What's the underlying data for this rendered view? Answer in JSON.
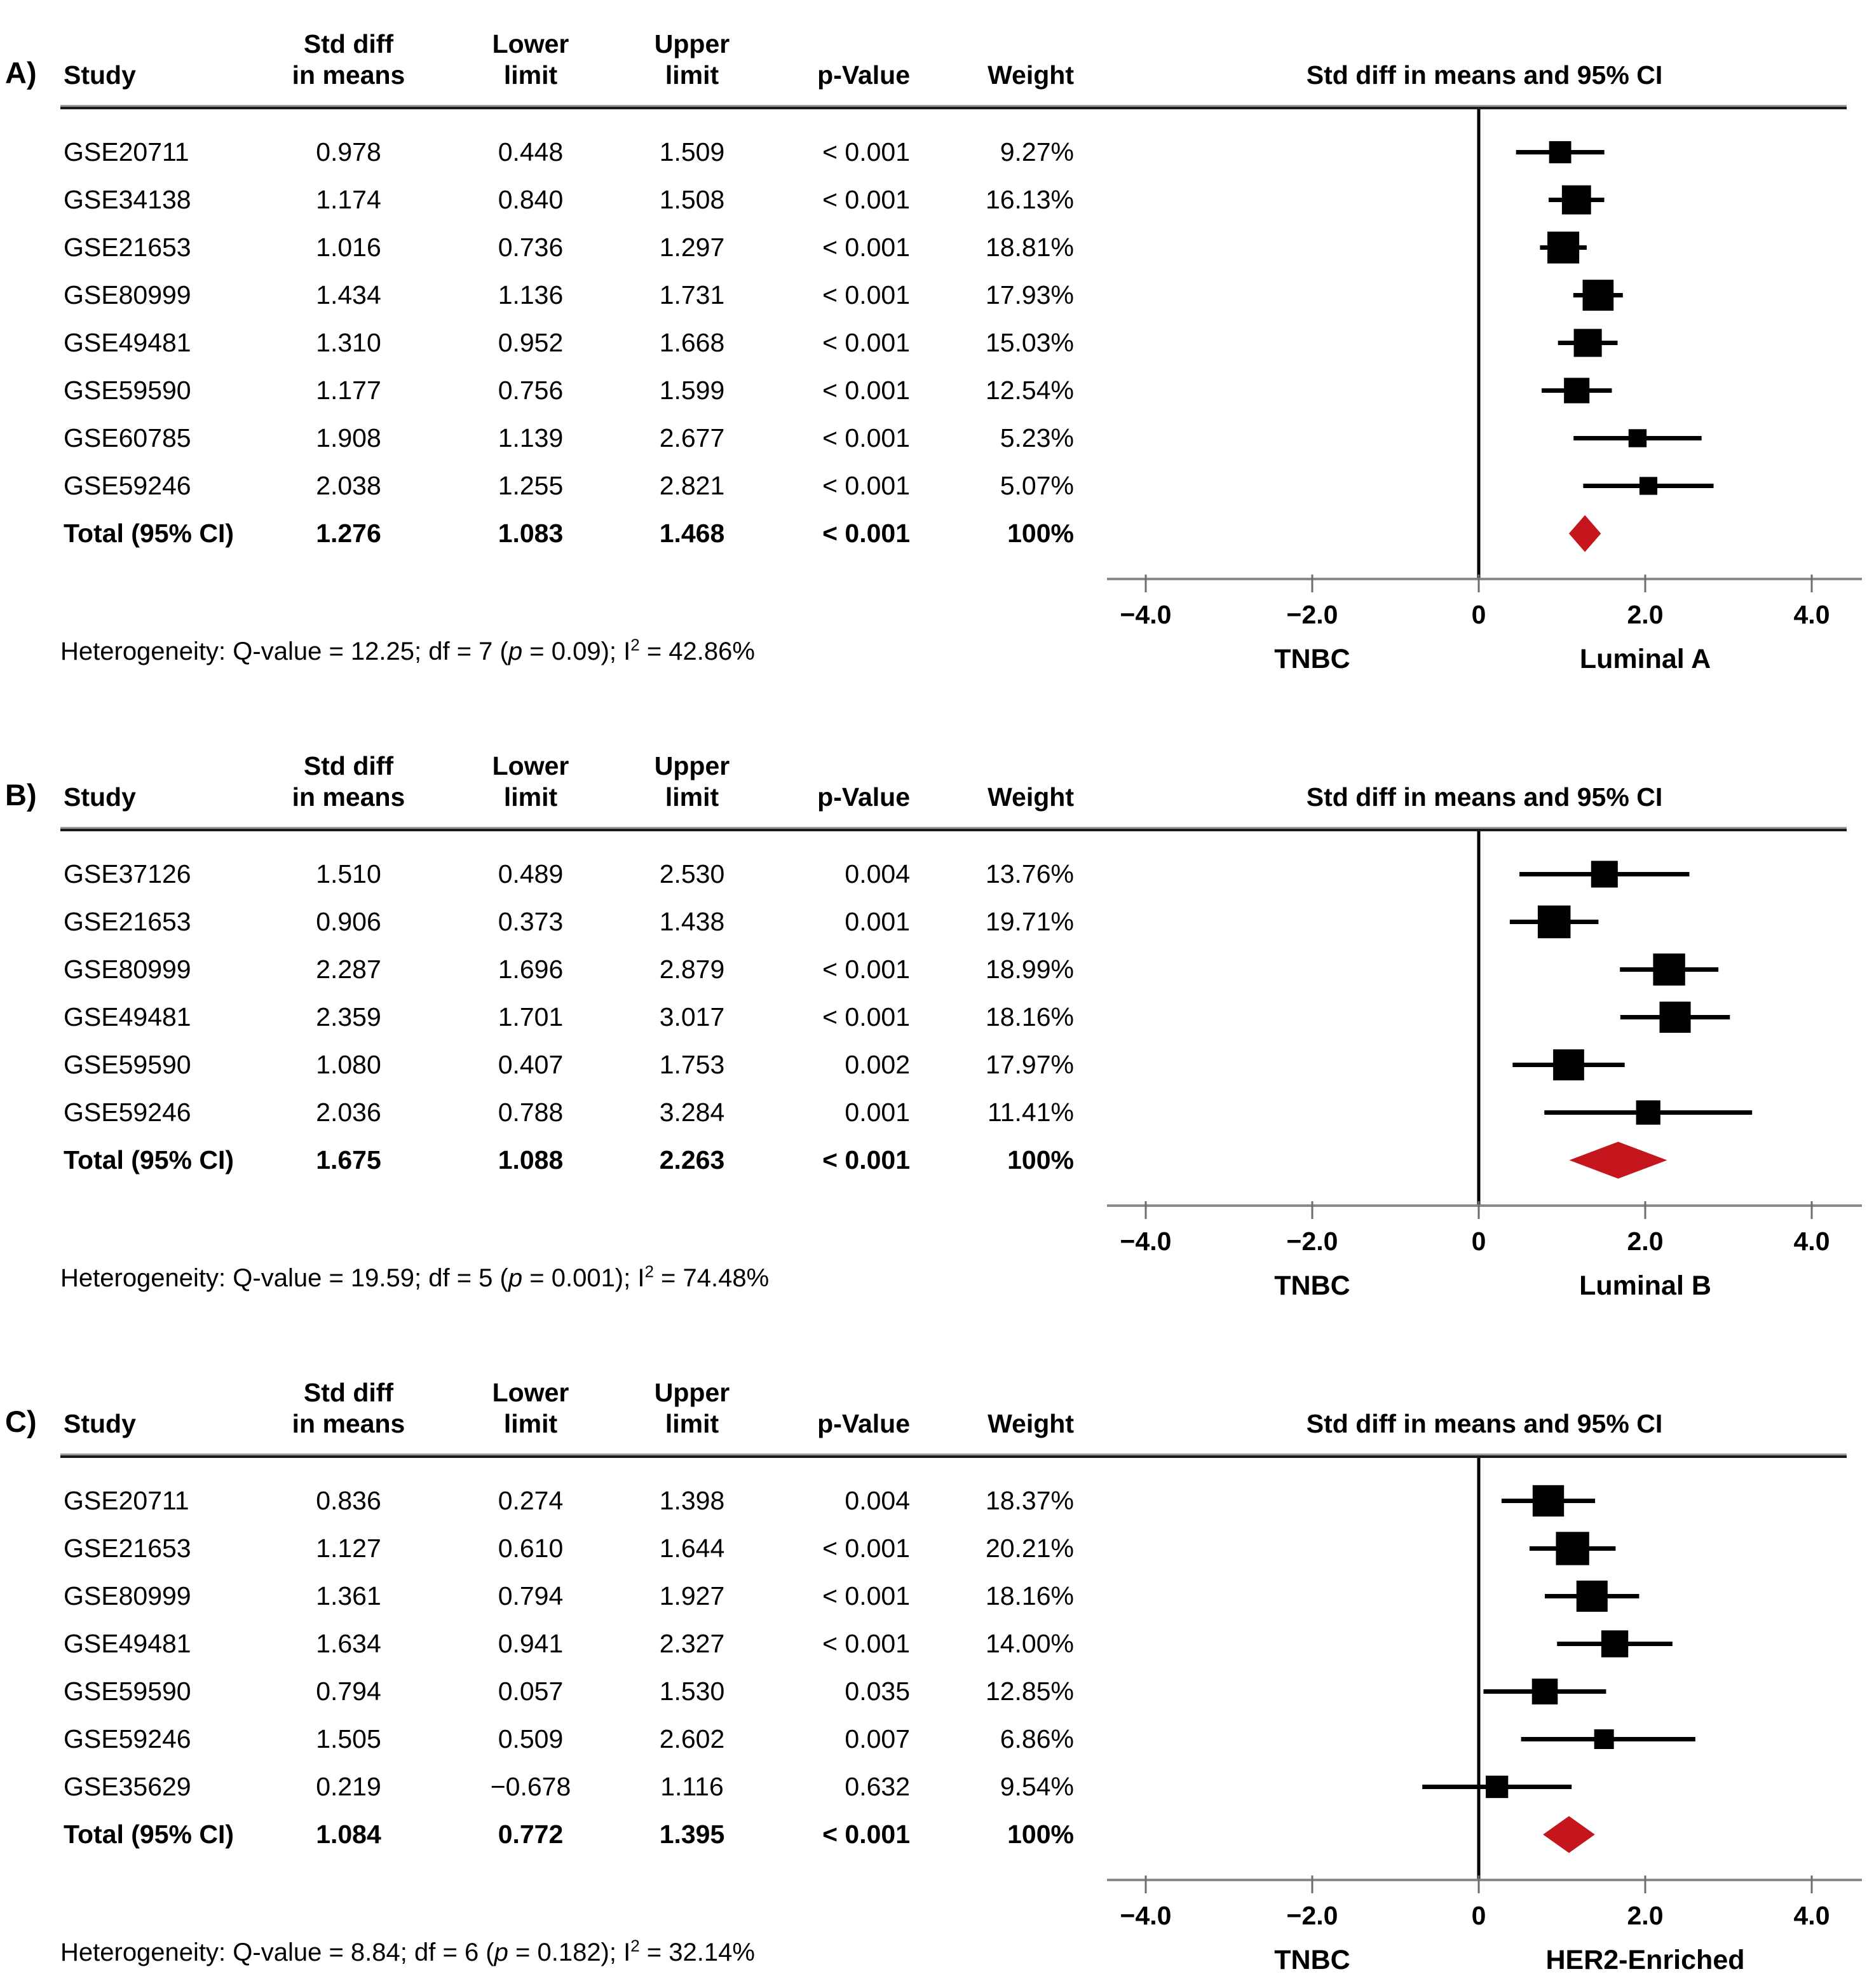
{
  "figure_name": "forest-plots-tnbc-vs-subtypes",
  "colors": {
    "marker": "#000000",
    "summary_diamond": "#c4161c",
    "axis_line": "#8a8a8a",
    "tick": "#6e6e6e",
    "zero_line": "#000000",
    "rule": "#1a1a1a"
  },
  "chart_data": [
    {
      "type": "scatter",
      "variant": "forest-plot",
      "panel": "A)",
      "plot_title": "Std diff in means and 95% CI",
      "columns": [
        [
          "Study"
        ],
        [
          "Std diff",
          "in means"
        ],
        [
          "Lower",
          "limit"
        ],
        [
          "Upper",
          "limit"
        ],
        [
          "p-Value"
        ],
        [
          "Weight"
        ]
      ],
      "rows": [
        {
          "study": "GSE20711",
          "mean": "0.978",
          "lower": "0.448",
          "upper": "1.509",
          "p": "< 0.001",
          "weight": "9.27%",
          "mean_v": 0.978,
          "lower_v": 0.448,
          "upper_v": 1.509,
          "weight_v": 9.27
        },
        {
          "study": "GSE34138",
          "mean": "1.174",
          "lower": "0.840",
          "upper": "1.508",
          "p": "< 0.001",
          "weight": "16.13%",
          "mean_v": 1.174,
          "lower_v": 0.84,
          "upper_v": 1.508,
          "weight_v": 16.13
        },
        {
          "study": "GSE21653",
          "mean": "1.016",
          "lower": "0.736",
          "upper": "1.297",
          "p": "< 0.001",
          "weight": "18.81%",
          "mean_v": 1.016,
          "lower_v": 0.736,
          "upper_v": 1.297,
          "weight_v": 18.81
        },
        {
          "study": "GSE80999",
          "mean": "1.434",
          "lower": "1.136",
          "upper": "1.731",
          "p": "< 0.001",
          "weight": "17.93%",
          "mean_v": 1.434,
          "lower_v": 1.136,
          "upper_v": 1.731,
          "weight_v": 17.93
        },
        {
          "study": "GSE49481",
          "mean": "1.310",
          "lower": "0.952",
          "upper": "1.668",
          "p": "< 0.001",
          "weight": "15.03%",
          "mean_v": 1.31,
          "lower_v": 0.952,
          "upper_v": 1.668,
          "weight_v": 15.03
        },
        {
          "study": "GSE59590",
          "mean": "1.177",
          "lower": "0.756",
          "upper": "1.599",
          "p": "< 0.001",
          "weight": "12.54%",
          "mean_v": 1.177,
          "lower_v": 0.756,
          "upper_v": 1.599,
          "weight_v": 12.54
        },
        {
          "study": "GSE60785",
          "mean": "1.908",
          "lower": "1.139",
          "upper": "2.677",
          "p": "< 0.001",
          "weight": "5.23%",
          "mean_v": 1.908,
          "lower_v": 1.139,
          "upper_v": 2.677,
          "weight_v": 5.23
        },
        {
          "study": "GSE59246",
          "mean": "2.038",
          "lower": "1.255",
          "upper": "2.821",
          "p": "< 0.001",
          "weight": "5.07%",
          "mean_v": 2.038,
          "lower_v": 1.255,
          "upper_v": 2.821,
          "weight_v": 5.07
        }
      ],
      "total": {
        "study": "Total (95% CI)",
        "mean": "1.276",
        "lower": "1.083",
        "upper": "1.468",
        "p": "< 0.001",
        "weight": "100%",
        "mean_v": 1.276,
        "lower_v": 1.083,
        "upper_v": 1.468
      },
      "axis": {
        "xlim": [
          -4.5,
          4.6
        ],
        "ticks": [
          {
            "v": -4,
            "label": "−4.0"
          },
          {
            "v": -2,
            "label": "−2.0"
          },
          {
            "v": 0,
            "label": "0"
          },
          {
            "v": 2,
            "label": "2.0"
          },
          {
            "v": 4,
            "label": "4.0"
          }
        ]
      },
      "xlabel_left": "TNBC",
      "xlabel_right": "Luminal A",
      "heterogeneity": [
        {
          "t": "Heterogeneity: Q-value = 12.25; df = 7 ("
        },
        {
          "t": "p",
          "style": "italic"
        },
        {
          "t": " = 0.09); I"
        },
        {
          "t": "2",
          "style": "sup"
        },
        {
          "t": " = 42.86%"
        }
      ]
    },
    {
      "type": "scatter",
      "variant": "forest-plot",
      "panel": "B)",
      "plot_title": "Std diff in means and 95% CI",
      "columns": [
        [
          "Study"
        ],
        [
          "Std diff",
          "in means"
        ],
        [
          "Lower",
          "limit"
        ],
        [
          "Upper",
          "limit"
        ],
        [
          "p-Value"
        ],
        [
          "Weight"
        ]
      ],
      "rows": [
        {
          "study": "GSE37126",
          "mean": "1.510",
          "lower": "0.489",
          "upper": "2.530",
          "p": "0.004",
          "weight": "13.76%",
          "mean_v": 1.51,
          "lower_v": 0.489,
          "upper_v": 2.53,
          "weight_v": 13.76
        },
        {
          "study": "GSE21653",
          "mean": "0.906",
          "lower": "0.373",
          "upper": "1.438",
          "p": "0.001",
          "weight": "19.71%",
          "mean_v": 0.906,
          "lower_v": 0.373,
          "upper_v": 1.438,
          "weight_v": 19.71
        },
        {
          "study": "GSE80999",
          "mean": "2.287",
          "lower": "1.696",
          "upper": "2.879",
          "p": "< 0.001",
          "weight": "18.99%",
          "mean_v": 2.287,
          "lower_v": 1.696,
          "upper_v": 2.879,
          "weight_v": 18.99
        },
        {
          "study": "GSE49481",
          "mean": "2.359",
          "lower": "1.701",
          "upper": "3.017",
          "p": "< 0.001",
          "weight": "18.16%",
          "mean_v": 2.359,
          "lower_v": 1.701,
          "upper_v": 3.017,
          "weight_v": 18.16
        },
        {
          "study": "GSE59590",
          "mean": "1.080",
          "lower": "0.407",
          "upper": "1.753",
          "p": "0.002",
          "weight": "17.97%",
          "mean_v": 1.08,
          "lower_v": 0.407,
          "upper_v": 1.753,
          "weight_v": 17.97
        },
        {
          "study": "GSE59246",
          "mean": "2.036",
          "lower": "0.788",
          "upper": "3.284",
          "p": "0.001",
          "weight": "11.41%",
          "mean_v": 2.036,
          "lower_v": 0.788,
          "upper_v": 3.284,
          "weight_v": 11.41
        }
      ],
      "total": {
        "study": "Total (95% CI)",
        "mean": "1.675",
        "lower": "1.088",
        "upper": "2.263",
        "p": "< 0.001",
        "weight": "100%",
        "mean_v": 1.675,
        "lower_v": 1.088,
        "upper_v": 2.263
      },
      "axis": {
        "xlim": [
          -4.5,
          4.6
        ],
        "ticks": [
          {
            "v": -4,
            "label": "−4.0"
          },
          {
            "v": -2,
            "label": "−2.0"
          },
          {
            "v": 0,
            "label": "0"
          },
          {
            "v": 2,
            "label": "2.0"
          },
          {
            "v": 4,
            "label": "4.0"
          }
        ]
      },
      "xlabel_left": "TNBC",
      "xlabel_right": "Luminal B",
      "heterogeneity": [
        {
          "t": "Heterogeneity: Q-value = 19.59; df = 5 ("
        },
        {
          "t": "p",
          "style": "italic"
        },
        {
          "t": " = 0.001); I"
        },
        {
          "t": "2",
          "style": "sup"
        },
        {
          "t": " = 74.48%"
        }
      ]
    },
    {
      "type": "scatter",
      "variant": "forest-plot",
      "panel": "C)",
      "plot_title": "Std diff in means and 95% CI",
      "columns": [
        [
          "Study"
        ],
        [
          "Std diff",
          "in means"
        ],
        [
          "Lower",
          "limit"
        ],
        [
          "Upper",
          "limit"
        ],
        [
          "p-Value"
        ],
        [
          "Weight"
        ]
      ],
      "rows": [
        {
          "study": "GSE20711",
          "mean": "0.836",
          "lower": "0.274",
          "upper": "1.398",
          "p": "0.004",
          "weight": "18.37%",
          "mean_v": 0.836,
          "lower_v": 0.274,
          "upper_v": 1.398,
          "weight_v": 18.37
        },
        {
          "study": "GSE21653",
          "mean": "1.127",
          "lower": "0.610",
          "upper": "1.644",
          "p": "< 0.001",
          "weight": "20.21%",
          "mean_v": 1.127,
          "lower_v": 0.61,
          "upper_v": 1.644,
          "weight_v": 20.21
        },
        {
          "study": "GSE80999",
          "mean": "1.361",
          "lower": "0.794",
          "upper": "1.927",
          "p": "< 0.001",
          "weight": "18.16%",
          "mean_v": 1.361,
          "lower_v": 0.794,
          "upper_v": 1.927,
          "weight_v": 18.16
        },
        {
          "study": "GSE49481",
          "mean": "1.634",
          "lower": "0.941",
          "upper": "2.327",
          "p": "< 0.001",
          "weight": "14.00%",
          "mean_v": 1.634,
          "lower_v": 0.941,
          "upper_v": 2.327,
          "weight_v": 14.0
        },
        {
          "study": "GSE59590",
          "mean": "0.794",
          "lower": "0.057",
          "upper": "1.530",
          "p": "0.035",
          "weight": "12.85%",
          "mean_v": 0.794,
          "lower_v": 0.057,
          "upper_v": 1.53,
          "weight_v": 12.85
        },
        {
          "study": "GSE59246",
          "mean": "1.505",
          "lower": "0.509",
          "upper": "2.602",
          "p": "0.007",
          "weight": "6.86%",
          "mean_v": 1.505,
          "lower_v": 0.509,
          "upper_v": 2.602,
          "weight_v": 6.86
        },
        {
          "study": "GSE35629",
          "mean": "0.219",
          "lower": "−0.678",
          "upper": "1.116",
          "p": "0.632",
          "weight": "9.54%",
          "mean_v": 0.219,
          "lower_v": -0.678,
          "upper_v": 1.116,
          "weight_v": 9.54
        }
      ],
      "total": {
        "study": "Total (95% CI)",
        "mean": "1.084",
        "lower": "0.772",
        "upper": "1.395",
        "p": "< 0.001",
        "weight": "100%",
        "mean_v": 1.084,
        "lower_v": 0.772,
        "upper_v": 1.395
      },
      "axis": {
        "xlim": [
          -4.5,
          4.6
        ],
        "ticks": [
          {
            "v": -4,
            "label": "−4.0"
          },
          {
            "v": -2,
            "label": "−2.0"
          },
          {
            "v": 0,
            "label": "0"
          },
          {
            "v": 2,
            "label": "2.0"
          },
          {
            "v": 4,
            "label": "4.0"
          }
        ]
      },
      "xlabel_left": "TNBC",
      "xlabel_right": "HER2-Enriched",
      "heterogeneity": [
        {
          "t": "Heterogeneity: Q-value = 8.84; df = 6 ("
        },
        {
          "t": "p",
          "style": "italic"
        },
        {
          "t": " = 0.182); I"
        },
        {
          "t": "2",
          "style": "sup"
        },
        {
          "t": " = 32.14%"
        }
      ]
    }
  ]
}
